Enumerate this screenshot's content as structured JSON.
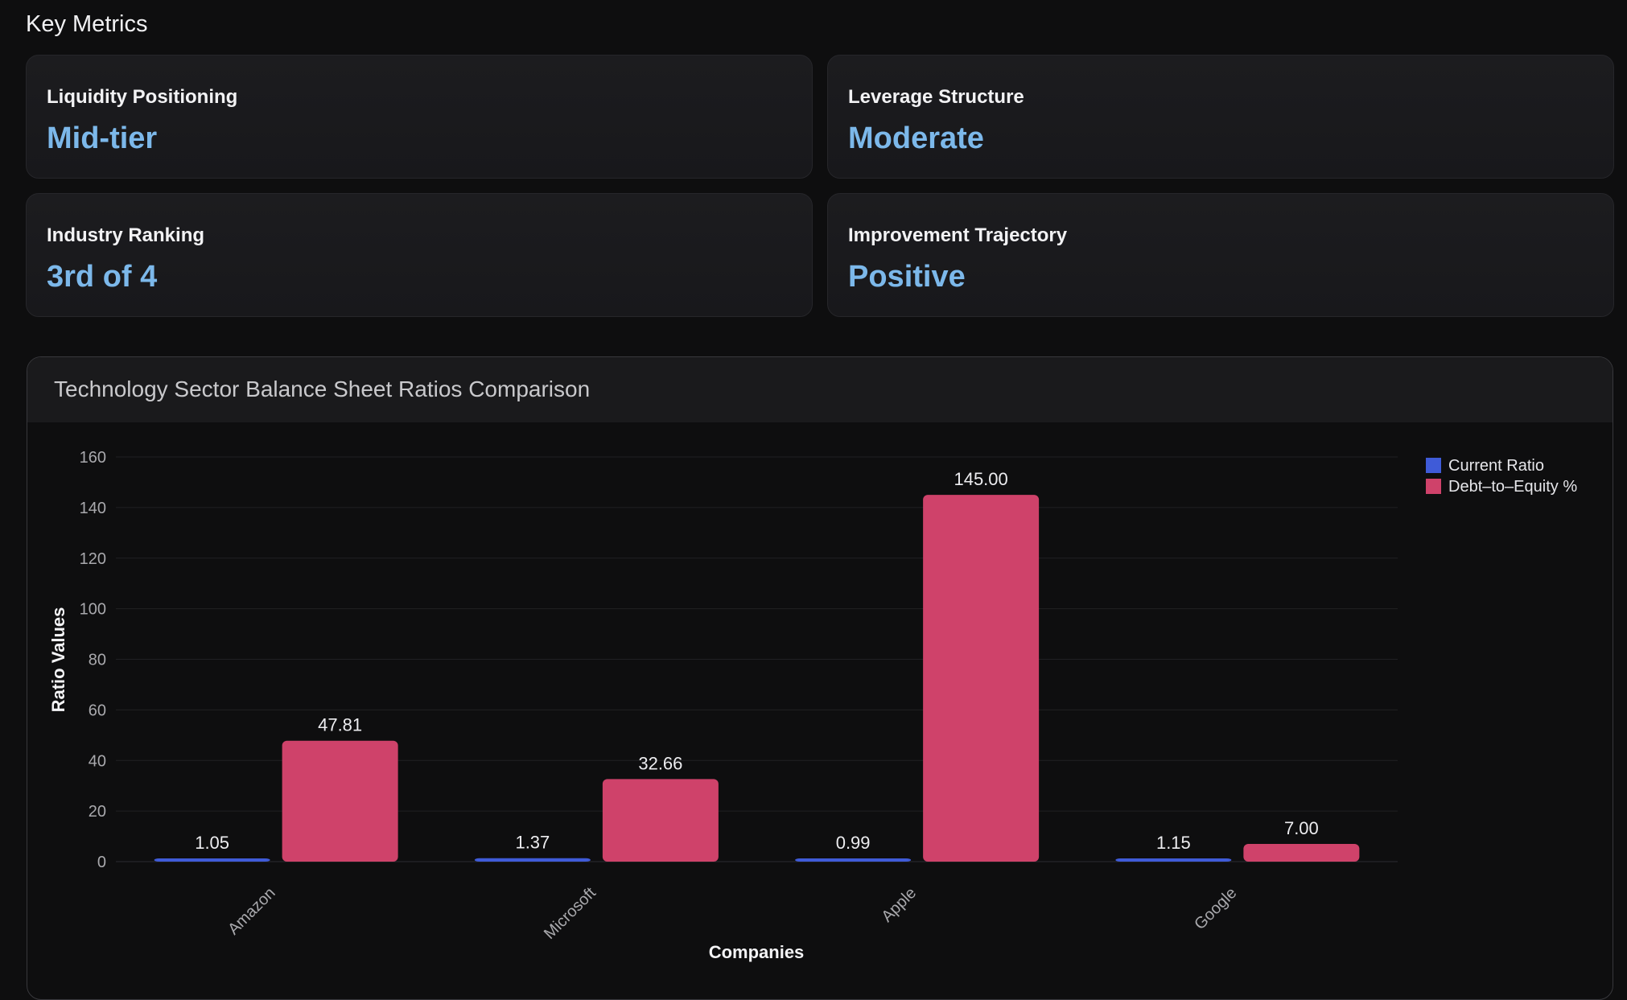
{
  "page": {
    "section_title": "Key Metrics"
  },
  "metrics": [
    {
      "label": "Liquidity Positioning",
      "value": "Mid-tier"
    },
    {
      "label": "Leverage Structure",
      "value": "Moderate"
    },
    {
      "label": "Industry Ranking",
      "value": "3rd of 4"
    },
    {
      "label": "Improvement Trajectory",
      "value": "Positive"
    }
  ],
  "colors": {
    "background": "#0e0e0f",
    "metric_value": "#7cb8ea",
    "current_ratio": "#3f5bd8",
    "debt_to_equity": "#cf426a"
  },
  "chart_data": {
    "type": "bar",
    "title": "Technology Sector Balance Sheet Ratios Comparison",
    "xlabel": "Companies",
    "ylabel": "Ratio Values",
    "categories": [
      "Amazon",
      "Microsoft",
      "Apple",
      "Google"
    ],
    "series": [
      {
        "name": "Current Ratio",
        "values": [
          1.05,
          1.37,
          0.99,
          1.15
        ],
        "labels": [
          "1.05",
          "1.37",
          "0.99",
          "1.15"
        ]
      },
      {
        "name": "Debt–to–Equity %",
        "values": [
          47.81,
          32.66,
          145.0,
          7.0
        ],
        "labels": [
          "47.81",
          "32.66",
          "145.00",
          "7.00"
        ]
      }
    ],
    "ylim": [
      0,
      160
    ],
    "yticks": [
      0,
      20,
      40,
      60,
      80,
      100,
      120,
      140,
      160
    ],
    "grid": true,
    "legend_position": "top-right"
  }
}
